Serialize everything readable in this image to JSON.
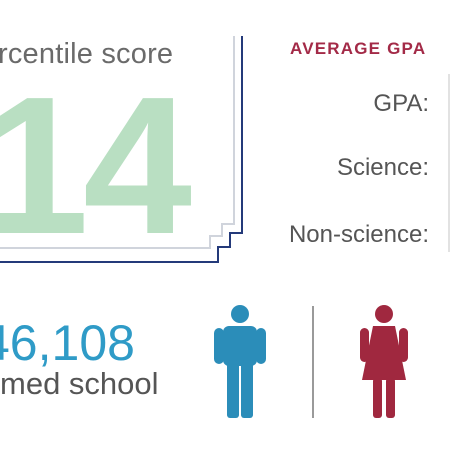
{
  "score": {
    "label": "rcentile score",
    "value": "14"
  },
  "gpa": {
    "heading": "AVERAGE GPA",
    "rows": [
      {
        "label": "GPA:"
      },
      {
        "label": "Science:"
      },
      {
        "label": "Non-science:"
      }
    ]
  },
  "applicants": {
    "number": "46,108",
    "label": "med school"
  },
  "icons": {
    "male": "male-person-icon",
    "female": "female-person-icon"
  },
  "colors": {
    "score_value": "#b9dfc2",
    "frame": "#243a7a",
    "gpa_heading": "#a32a47",
    "applicants_number": "#2f9bc7",
    "male_icon": "#2b8db9",
    "female_icon": "#a0283f"
  }
}
